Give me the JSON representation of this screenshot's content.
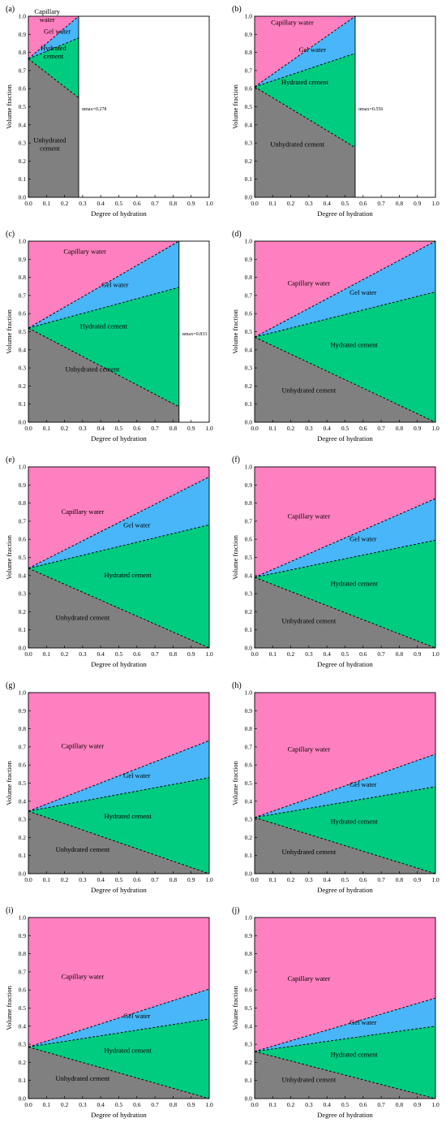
{
  "colors": {
    "capillary_water": "#ff80c0",
    "gel_water": "#48b6f8",
    "hydrated_cement": "#00cc7f",
    "unhydrated_cement": "#808080"
  },
  "chart_data": [
    {
      "type": "area",
      "panel": "(a)",
      "xlabel": "Degree of hydration",
      "ylabel": "Volume fraction",
      "xlim": [
        0,
        1
      ],
      "ylim": [
        0,
        1
      ],
      "alpha_max": 0.278,
      "alpha_max_label": "αmax=0.278",
      "x": [
        0,
        0.278
      ],
      "boundaries": {
        "unhydrated_top": [
          0.765,
          0.55
        ],
        "hydrated_top": [
          0.765,
          0.88
        ],
        "gel_top": [
          0.765,
          1.0
        ],
        "capillary_top": [
          1.0,
          1.0
        ]
      },
      "region_labels": {
        "capillary": "Capillary\nwater",
        "gel": "Gel water",
        "hydrated": "Hydrated\ncement",
        "unhydrated": "Unhydrated\ncement"
      }
    },
    {
      "type": "area",
      "panel": "(b)",
      "xlabel": "Degree of hydration",
      "ylabel": "Volume fraction",
      "xlim": [
        0,
        1
      ],
      "ylim": [
        0,
        1
      ],
      "alpha_max": 0.556,
      "alpha_max_label": "αmax=0.556",
      "x": [
        0,
        0.556
      ],
      "boundaries": {
        "unhydrated_top": [
          0.61,
          0.275
        ],
        "hydrated_top": [
          0.61,
          0.795
        ],
        "gel_top": [
          0.61,
          1.0
        ],
        "capillary_top": [
          1.0,
          1.0
        ]
      },
      "region_labels": {
        "capillary": "Capillary water",
        "gel": "Gel water",
        "hydrated": "Hydrated cement",
        "unhydrated": "Unhydrated cement"
      }
    },
    {
      "type": "area",
      "panel": "(c)",
      "xlabel": "Degree of hydration",
      "ylabel": "Volume fraction",
      "xlim": [
        0,
        1
      ],
      "ylim": [
        0,
        1
      ],
      "alpha_max": 0.833,
      "alpha_max_label": "αmax=0.833",
      "x": [
        0,
        0.833
      ],
      "boundaries": {
        "unhydrated_top": [
          0.52,
          0.085
        ],
        "hydrated_top": [
          0.52,
          0.745
        ],
        "gel_top": [
          0.52,
          1.0
        ],
        "capillary_top": [
          1.0,
          1.0
        ]
      },
      "region_labels": {
        "capillary": "Capillary water",
        "gel": "Gel water",
        "hydrated": "Hydrated cement",
        "unhydrated": "Unhydrated cement"
      }
    },
    {
      "type": "area",
      "panel": "(d)",
      "xlabel": "Degree of hydration",
      "ylabel": "Volume fraction",
      "xlim": [
        0,
        1
      ],
      "ylim": [
        0,
        1
      ],
      "x": [
        0,
        1
      ],
      "boundaries": {
        "unhydrated_top": [
          0.47,
          0.0
        ],
        "hydrated_top": [
          0.47,
          0.72
        ],
        "gel_top": [
          0.47,
          1.0
        ],
        "capillary_top": [
          1.0,
          1.0
        ]
      },
      "region_labels": {
        "capillary": "Capillary water",
        "gel": "Gel water",
        "hydrated": "Hydrated cement",
        "unhydrated": "Unhydrated cement"
      }
    },
    {
      "type": "area",
      "panel": "(e)",
      "xlabel": "Degree of hydration",
      "ylabel": "Volume fraction",
      "xlim": [
        0,
        1
      ],
      "ylim": [
        0,
        1
      ],
      "x": [
        0,
        1
      ],
      "boundaries": {
        "unhydrated_top": [
          0.44,
          0.0
        ],
        "hydrated_top": [
          0.44,
          0.68
        ],
        "gel_top": [
          0.44,
          0.945
        ],
        "capillary_top": [
          1.0,
          1.0
        ]
      },
      "region_labels": {
        "capillary": "Capillary water",
        "gel": "Gel water",
        "hydrated": "Hydrated cement",
        "unhydrated": "Unhydrated cement"
      }
    },
    {
      "type": "area",
      "panel": "(f)",
      "xlabel": "Degree of hydration",
      "ylabel": "Volume fraction",
      "xlim": [
        0,
        1
      ],
      "ylim": [
        0,
        1
      ],
      "x": [
        0,
        1
      ],
      "boundaries": {
        "unhydrated_top": [
          0.39,
          0.0
        ],
        "hydrated_top": [
          0.39,
          0.595
        ],
        "gel_top": [
          0.39,
          0.825
        ],
        "capillary_top": [
          1.0,
          1.0
        ]
      },
      "region_labels": {
        "capillary": "Capillary water",
        "gel": "Gel water",
        "hydrated": "Hydrated cement",
        "unhydrated": "Unhydrated cement"
      }
    },
    {
      "type": "area",
      "panel": "(g)",
      "xlabel": "Degree of hydration",
      "ylabel": "Volume fraction",
      "xlim": [
        0,
        1
      ],
      "ylim": [
        0,
        1
      ],
      "x": [
        0,
        1
      ],
      "boundaries": {
        "unhydrated_top": [
          0.345,
          0.0
        ],
        "hydrated_top": [
          0.345,
          0.53
        ],
        "gel_top": [
          0.345,
          0.735
        ],
        "capillary_top": [
          1.0,
          1.0
        ]
      },
      "region_labels": {
        "capillary": "Capillary water",
        "gel": "Gel water",
        "hydrated": "Hydrated cement",
        "unhydrated": "Unhydrated cement"
      }
    },
    {
      "type": "area",
      "panel": "(h)",
      "xlabel": "Degree of hydration",
      "ylabel": "Volume fraction",
      "xlim": [
        0,
        1
      ],
      "ylim": [
        0,
        1
      ],
      "x": [
        0,
        1
      ],
      "boundaries": {
        "unhydrated_top": [
          0.31,
          0.0
        ],
        "hydrated_top": [
          0.31,
          0.48
        ],
        "gel_top": [
          0.31,
          0.66
        ],
        "capillary_top": [
          1.0,
          1.0
        ]
      },
      "region_labels": {
        "capillary": "Capillary water",
        "gel": "Gel water",
        "hydrated": "Hydrated cement",
        "unhydrated": "Unhydrated cement"
      }
    },
    {
      "type": "area",
      "panel": "(i)",
      "xlabel": "Degree of hydration",
      "ylabel": "Volume fraction",
      "xlim": [
        0,
        1
      ],
      "ylim": [
        0,
        1
      ],
      "x": [
        0,
        1
      ],
      "boundaries": {
        "unhydrated_top": [
          0.285,
          0.0
        ],
        "hydrated_top": [
          0.285,
          0.44
        ],
        "gel_top": [
          0.285,
          0.605
        ],
        "capillary_top": [
          1.0,
          1.0
        ]
      },
      "region_labels": {
        "capillary": "Capillary water",
        "gel": "Gel water",
        "hydrated": "Hydrated cement",
        "unhydrated": "Unhydrated cement"
      }
    },
    {
      "type": "area",
      "panel": "(j)",
      "xlabel": "Degree of hydration",
      "ylabel": "Volume fraction",
      "xlim": [
        0,
        1
      ],
      "ylim": [
        0,
        1
      ],
      "x": [
        0,
        1
      ],
      "boundaries": {
        "unhydrated_top": [
          0.26,
          0.0
        ],
        "hydrated_top": [
          0.26,
          0.4
        ],
        "gel_top": [
          0.26,
          0.555
        ],
        "capillary_top": [
          1.0,
          1.0
        ]
      },
      "region_labels": {
        "capillary": "Capillary water",
        "gel": "Gel water",
        "hydrated": "Hydrated cement",
        "unhydrated": "Unhydrated cement"
      }
    }
  ]
}
